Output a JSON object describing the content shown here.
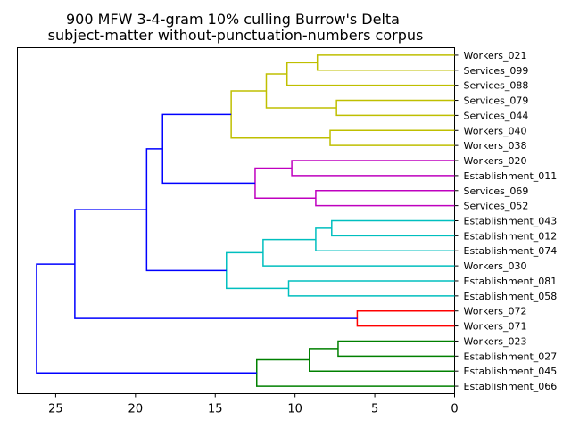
{
  "chart_data": {
    "type": "dendrogram",
    "title_line1": "900 MFW 3-4-gram 10% culling Burrow's Delta",
    "title_line2": "subject-matter without-punctuation-numbers corpus",
    "orientation": "left",
    "xlim": [
      27.4,
      0
    ],
    "xticks": [
      25,
      20,
      15,
      10,
      5,
      0
    ],
    "leaves": [
      "Workers_021",
      "Services_099",
      "Services_088",
      "Services_079",
      "Services_044",
      "Workers_040",
      "Workers_038",
      "Workers_020",
      "Establishment_011",
      "Services_069",
      "Services_052",
      "Establishment_043",
      "Establishment_012",
      "Establishment_074",
      "Workers_030",
      "Establishment_081",
      "Establishment_058",
      "Workers_072",
      "Workers_071",
      "Workers_023",
      "Establishment_027",
      "Establishment_045",
      "Establishment_066"
    ],
    "colors": {
      "c1": "#bfbf00",
      "c2": "#bf00bf",
      "c3": "#00bfbf",
      "c4": "#ff0000",
      "c5": "#008000",
      "above": "#0000ff"
    },
    "merges": [
      {
        "a": 0,
        "b": 1,
        "h": 8.6,
        "c": "c1"
      },
      {
        "a": 23,
        "b": 2,
        "h": 10.5,
        "c": "c1"
      },
      {
        "a": 3,
        "b": 4,
        "h": 7.4,
        "c": "c1"
      },
      {
        "a": 24,
        "b": 25,
        "h": 11.8,
        "c": "c1"
      },
      {
        "a": 5,
        "b": 6,
        "h": 7.8,
        "c": "c1"
      },
      {
        "a": 26,
        "b": 27,
        "h": 14.0,
        "c": "c1"
      },
      {
        "a": 7,
        "b": 8,
        "h": 10.2,
        "c": "c2"
      },
      {
        "a": 9,
        "b": 10,
        "h": 8.7,
        "c": "c2"
      },
      {
        "a": 29,
        "b": 30,
        "h": 12.5,
        "c": "c2"
      },
      {
        "a": 28,
        "b": 31,
        "h": 18.3,
        "c": "above"
      },
      {
        "a": 11,
        "b": 12,
        "h": 7.7,
        "c": "c3"
      },
      {
        "a": 33,
        "b": 13,
        "h": 8.7,
        "c": "c3"
      },
      {
        "a": 34,
        "b": 14,
        "h": 12.0,
        "c": "c3"
      },
      {
        "a": 15,
        "b": 16,
        "h": 10.4,
        "c": "c3"
      },
      {
        "a": 35,
        "b": 36,
        "h": 14.3,
        "c": "c3"
      },
      {
        "a": 32,
        "b": 37,
        "h": 19.3,
        "c": "above"
      },
      {
        "a": 17,
        "b": 18,
        "h": 6.1,
        "c": "c4"
      },
      {
        "a": 38,
        "b": 39,
        "h": 23.8,
        "c": "above"
      },
      {
        "a": 19,
        "b": 20,
        "h": 7.3,
        "c": "c5"
      },
      {
        "a": 41,
        "b": 21,
        "h": 9.1,
        "c": "c5"
      },
      {
        "a": 42,
        "b": 22,
        "h": 12.4,
        "c": "c5"
      },
      {
        "a": 40,
        "b": 43,
        "h": 26.2,
        "c": "above"
      }
    ]
  }
}
